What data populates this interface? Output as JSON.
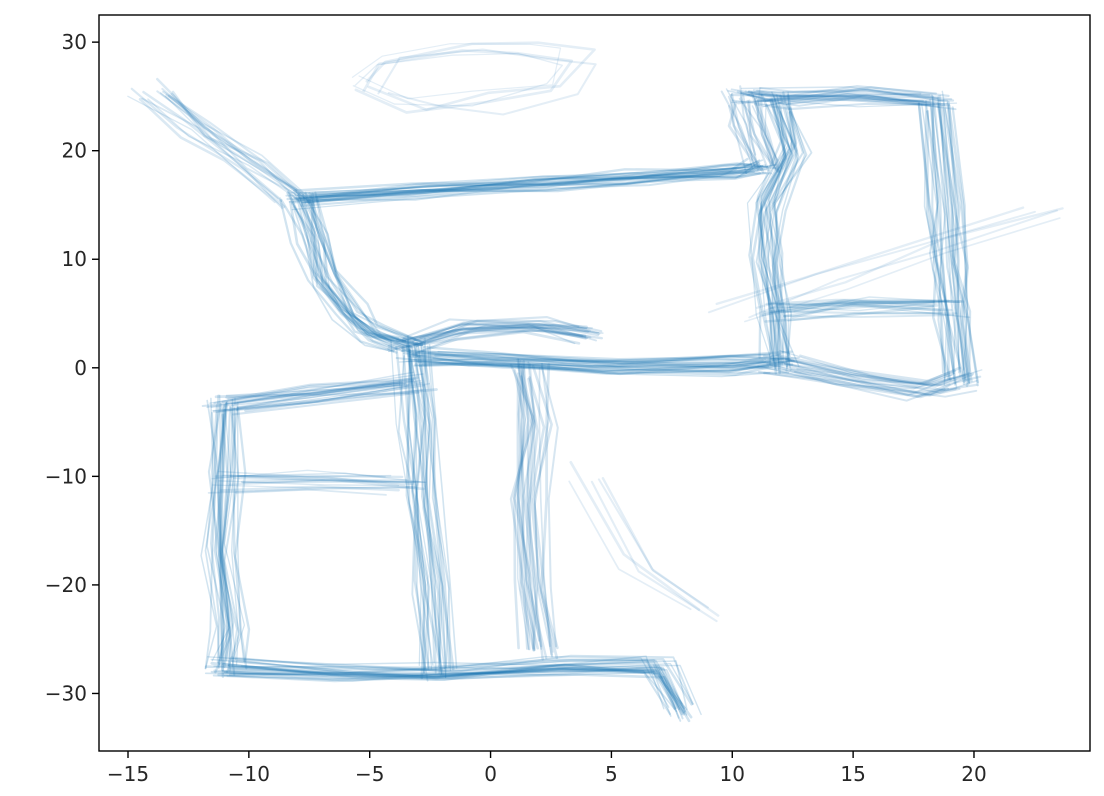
{
  "chart_data": {
    "type": "scatter",
    "title": "",
    "xlabel": "",
    "ylabel": "",
    "xlim": [
      -16.2,
      24.8
    ],
    "ylim": [
      -35.3,
      32.5
    ],
    "xticks": [
      -15,
      -10,
      -5,
      0,
      5,
      10,
      15,
      20
    ],
    "yticks": [
      -30,
      -20,
      -10,
      0,
      10,
      20,
      30
    ],
    "xtick_labels": [
      "−15",
      "−10",
      "−5",
      "0",
      "5",
      "10",
      "15",
      "20"
    ],
    "ytick_labels": [
      "−30",
      "−20",
      "−10",
      "0",
      "10",
      "20",
      "30"
    ],
    "grid": false,
    "legend": "none",
    "marker": "dense small translucent dots tracing trajectories",
    "series": [
      {
        "color": "#1f77b4",
        "paths": [
          {
            "name": "top-corridor",
            "x": [
              -8,
              -3,
              2,
              6,
              10,
              11
            ],
            "y": [
              15.5,
              16.2,
              17,
              17.5,
              18,
              18.5
            ],
            "weight": 1.0
          },
          {
            "name": "left-diagonal",
            "x": [
              -8,
              -7.5,
              -7,
              -6,
              -5,
              -3.5
            ],
            "y": [
              15.5,
              12,
              8,
              5,
              3,
              2
            ],
            "weight": 1.0
          },
          {
            "name": "center-link",
            "x": [
              -3.5,
              -1,
              2,
              4
            ],
            "y": [
              2,
              3.5,
              3.8,
              3
            ],
            "weight": 0.8
          },
          {
            "name": "middle-corridor",
            "x": [
              -3,
              0,
              5,
              10,
              12
            ],
            "y": [
              1,
              0.5,
              0,
              0.2,
              0.5
            ],
            "weight": 1.0
          },
          {
            "name": "right-bottom-link",
            "x": [
              12,
              15,
              18,
              19.5
            ],
            "y": [
              0.5,
              -1,
              -2,
              -1
            ],
            "weight": 0.8
          },
          {
            "name": "right-inner-vertical",
            "x": [
              12,
              11.8,
              11.5,
              11.5,
              12.5,
              12
            ],
            "y": [
              0.5,
              5,
              10,
              15,
              20,
              24.5
            ],
            "weight": 1.0
          },
          {
            "name": "right-outer-vertical",
            "x": [
              19.5,
              19.2,
              19,
              18.8,
              18.5
            ],
            "y": [
              -1,
              5,
              10,
              15,
              24.5
            ],
            "weight": 1.0
          },
          {
            "name": "right-top",
            "x": [
              10.5,
              12,
              15,
              18.5
            ],
            "y": [
              25,
              24.8,
              25,
              24.5
            ],
            "weight": 0.9
          },
          {
            "name": "right-mid",
            "x": [
              12,
              15,
              19
            ],
            "y": [
              5,
              5.5,
              5.5
            ],
            "weight": 0.7
          },
          {
            "name": "right-upper-left-vertical",
            "x": [
              10.5,
              10.8,
              11.5
            ],
            "y": [
              25,
              22,
              18.5
            ],
            "weight": 0.8
          },
          {
            "name": "left-center-vertical",
            "x": [
              -3.2,
              -3,
              -2.8,
              -2.5,
              -2.2
            ],
            "y": [
              2,
              -5,
              -12,
              -20,
              -28
            ],
            "weight": 1.0
          },
          {
            "name": "left-box-top",
            "x": [
              -3.2,
              -7,
              -11
            ],
            "y": [
              -1.5,
              -2.5,
              -3.5
            ],
            "weight": 0.9
          },
          {
            "name": "left-outer-vertical",
            "x": [
              -11,
              -11,
              -11.2,
              -10.8,
              -11
            ],
            "y": [
              -3.5,
              -10,
              -17,
              -24,
              -27.5
            ],
            "weight": 1.0
          },
          {
            "name": "bottom-corridor",
            "x": [
              -11,
              -6,
              -2,
              3,
              7,
              8
            ],
            "y": [
              -27.5,
              -28,
              -28,
              -27.5,
              -27.5,
              -31.5
            ],
            "weight": 1.0
          },
          {
            "name": "left-box-middle",
            "x": [
              -11,
              -7,
              -3.5
            ],
            "y": [
              -10.5,
              -10.5,
              -11
            ],
            "weight": 0.6
          },
          {
            "name": "second-vertical",
            "x": [
              1.5,
              1.8,
              1.5,
              1.8,
              2
            ],
            "y": [
              0,
              -5,
              -12,
              -20,
              -26
            ],
            "weight": 0.8
          },
          {
            "name": "far-left-branch",
            "x": [
              -8,
              -10,
              -12,
              -14
            ],
            "y": [
              15.5,
              19,
              22,
              25.5
            ],
            "weight": 0.6
          },
          {
            "name": "top-loop",
            "x": [
              -5,
              -4,
              -1,
              2,
              4,
              3,
              0,
              -3,
              -5
            ],
            "y": [
              26,
              28.5,
              29.5,
              29.5,
              28.5,
              26,
              24.5,
              24,
              26
            ],
            "weight": 0.2
          },
          {
            "name": "sparse-diagonal-1",
            "x": [
              4,
              6,
              9
            ],
            "y": [
              -10,
              -18,
              -22.5
            ],
            "weight": 0.2
          },
          {
            "name": "sparse-diagonal-2",
            "x": [
              10,
              14,
              18,
              23
            ],
            "y": [
              5,
              8,
              11,
              14
            ],
            "weight": 0.2
          }
        ]
      }
    ]
  }
}
